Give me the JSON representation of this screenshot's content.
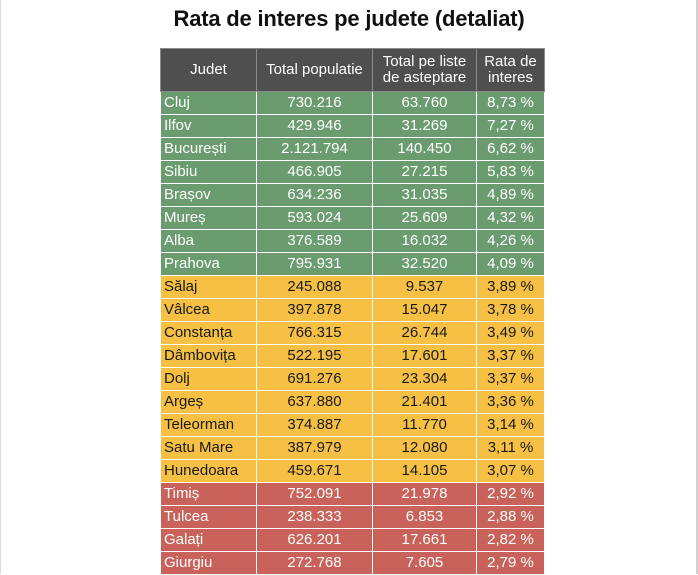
{
  "title": "Rata de interes pe judete (detaliat)",
  "colors": {
    "green": "#6b9c6f",
    "yellow": "#f6c044",
    "red": "#c8625a",
    "header": "#4f4f4f"
  },
  "table": {
    "headers": [
      "Judet",
      "Total populatie",
      "Total pe liste de asteptare",
      "Rata de interes"
    ],
    "rows": [
      {
        "judet": "Cluj",
        "populatie": "730.216",
        "asteptare": "63.760",
        "rata": "8,73 %",
        "group": "green"
      },
      {
        "judet": "Ilfov",
        "populatie": "429.946",
        "asteptare": "31.269",
        "rata": "7,27 %",
        "group": "green"
      },
      {
        "judet": "București",
        "populatie": "2.121.794",
        "asteptare": "140.450",
        "rata": "6,62 %",
        "group": "green"
      },
      {
        "judet": "Sibiu",
        "populatie": "466.905",
        "asteptare": "27.215",
        "rata": "5,83 %",
        "group": "green"
      },
      {
        "judet": "Brașov",
        "populatie": "634.236",
        "asteptare": "31.035",
        "rata": "4,89 %",
        "group": "green"
      },
      {
        "judet": "Mureș",
        "populatie": "593.024",
        "asteptare": "25.609",
        "rata": "4,32 %",
        "group": "green"
      },
      {
        "judet": "Alba",
        "populatie": "376.589",
        "asteptare": "16.032",
        "rata": "4,26 %",
        "group": "green"
      },
      {
        "judet": "Prahova",
        "populatie": "795.931",
        "asteptare": "32.520",
        "rata": "4,09 %",
        "group": "green"
      },
      {
        "judet": "Sălaj",
        "populatie": "245.088",
        "asteptare": "9.537",
        "rata": "3,89 %",
        "group": "yellow"
      },
      {
        "judet": "Vâlcea",
        "populatie": "397.878",
        "asteptare": "15.047",
        "rata": "3,78 %",
        "group": "yellow"
      },
      {
        "judet": "Constanța",
        "populatie": "766.315",
        "asteptare": "26.744",
        "rata": "3,49 %",
        "group": "yellow"
      },
      {
        "judet": "Dâmbovița",
        "populatie": "522.195",
        "asteptare": "17.601",
        "rata": "3,37 %",
        "group": "yellow"
      },
      {
        "judet": "Dolj",
        "populatie": "691.276",
        "asteptare": "23.304",
        "rata": "3,37 %",
        "group": "yellow"
      },
      {
        "judet": "Argeș",
        "populatie": "637.880",
        "asteptare": "21.401",
        "rata": "3,36 %",
        "group": "yellow"
      },
      {
        "judet": "Teleorman",
        "populatie": "374.887",
        "asteptare": "11.770",
        "rata": "3,14 %",
        "group": "yellow"
      },
      {
        "judet": "Satu Mare",
        "populatie": "387.979",
        "asteptare": "12.080",
        "rata": "3,11 %",
        "group": "yellow"
      },
      {
        "judet": "Hunedoara",
        "populatie": "459.671",
        "asteptare": "14.105",
        "rata": "3,07 %",
        "group": "yellow"
      },
      {
        "judet": "Timiș",
        "populatie": "752.091",
        "asteptare": "21.978",
        "rata": "2,92 %",
        "group": "red"
      },
      {
        "judet": "Tulcea",
        "populatie": "238.333",
        "asteptare": "6.853",
        "rata": "2,88 %",
        "group": "red"
      },
      {
        "judet": "Galați",
        "populatie": "626.201",
        "asteptare": "17.661",
        "rata": "2,82 %",
        "group": "red"
      },
      {
        "judet": "Giurgiu",
        "populatie": "272.768",
        "asteptare": "7.605",
        "rata": "2,79 %",
        "group": "red"
      }
    ]
  }
}
